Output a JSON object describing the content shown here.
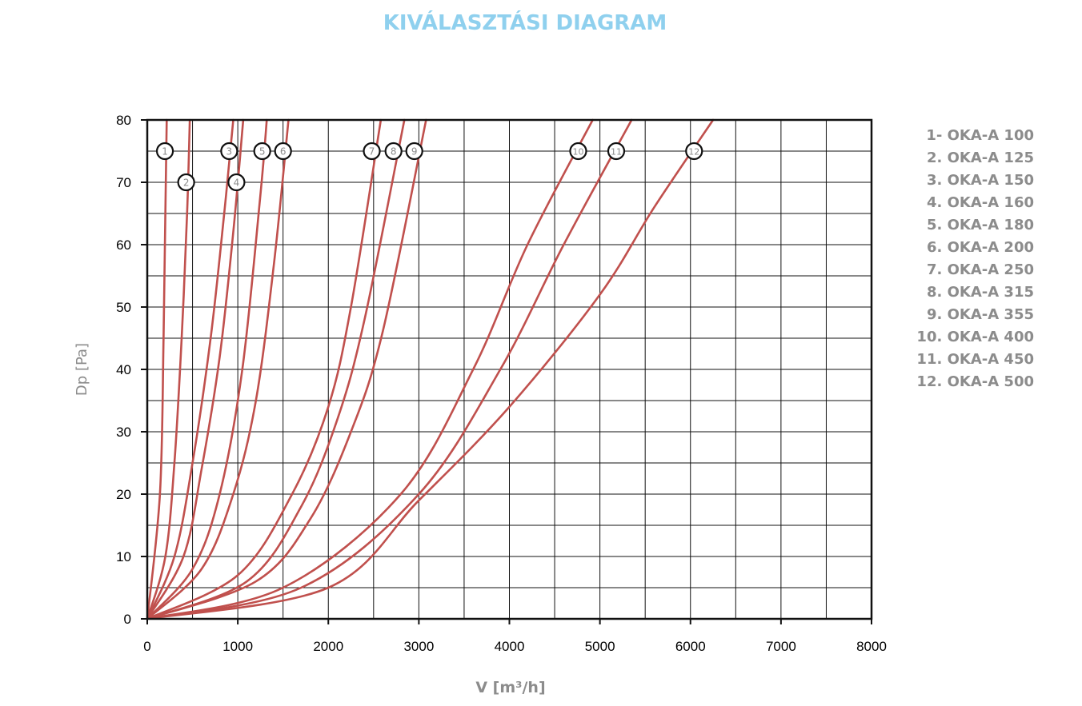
{
  "chart_data": {
    "type": "line",
    "title": "KIVÁLASZTÁSI DIAGRAM",
    "xlabel": "V [m³/h]",
    "ylabel": "Dp [Pa]",
    "xlim": [
      0,
      8000
    ],
    "ylim": [
      0,
      80
    ],
    "xticks": [
      0,
      1000,
      2000,
      3000,
      4000,
      5000,
      6000,
      7000,
      8000
    ],
    "yticks": [
      0,
      10,
      20,
      30,
      40,
      50,
      60,
      70,
      80
    ],
    "grid": true,
    "legend_position": "right",
    "line_color": "#c0504d",
    "legend": [
      "1- OKA-A 100",
      "2. OKA-A 125",
      "3. OKA-A 150",
      "4. OKA-A 160",
      "5. OKA-A 180",
      "6. OKA-A 200",
      "7. OKA-A 250",
      "8. OKA-A 315",
      "9. OKA-A 355",
      "10. OKA-A 400",
      "11. OKA-A 450",
      "12. OKA-A 500"
    ],
    "series": [
      {
        "label": "1",
        "label_point": [
          195,
          75
        ],
        "x": [
          0,
          140,
          180,
          200,
          215
        ],
        "y": [
          0,
          20,
          45,
          65,
          80
        ]
      },
      {
        "label": "2",
        "label_point": [
          430,
          70
        ],
        "x": [
          0,
          200,
          300,
          380,
          440,
          470
        ],
        "y": [
          0,
          10,
          25,
          45,
          65,
          80
        ]
      },
      {
        "label": "3",
        "label_point": [
          905,
          75
        ],
        "x": [
          0,
          300,
          500,
          700,
          850,
          950
        ],
        "y": [
          0,
          10,
          25,
          45,
          65,
          80
        ]
      },
      {
        "label": "4",
        "label_point": [
          985,
          70
        ],
        "x": [
          0,
          400,
          600,
          800,
          950,
          1060
        ],
        "y": [
          0,
          10,
          24,
          42,
          62,
          80
        ]
      },
      {
        "label": "5",
        "label_point": [
          1270,
          75
        ],
        "x": [
          0,
          500,
          800,
          1050,
          1250,
          1320
        ],
        "y": [
          0,
          8,
          20,
          40,
          68,
          80
        ]
      },
      {
        "label": "6",
        "label_point": [
          1500,
          75
        ],
        "x": [
          0,
          600,
          950,
          1200,
          1400,
          1560
        ],
        "y": [
          0,
          8,
          20,
          35,
          57,
          80
        ]
      },
      {
        "label": "7",
        "label_point": [
          2480,
          75
        ],
        "x": [
          0,
          1000,
          1600,
          2000,
          2250,
          2580
        ],
        "y": [
          0,
          7,
          20,
          34,
          50,
          80
        ]
      },
      {
        "label": "8",
        "label_point": [
          2720,
          75
        ],
        "x": [
          0,
          1100,
          1700,
          2100,
          2400,
          2840
        ],
        "y": [
          0,
          6,
          18,
          32,
          48,
          80
        ]
      },
      {
        "label": "9",
        "label_point": [
          2950,
          75
        ],
        "x": [
          0,
          1200,
          1800,
          2250,
          2600,
          3080
        ],
        "y": [
          0,
          6,
          16,
          30,
          46,
          80
        ]
      },
      {
        "label": "10",
        "label_point": [
          4760,
          75
        ],
        "x": [
          0,
          1500,
          2800,
          3600,
          4200,
          4920
        ],
        "y": [
          0,
          5,
          20,
          40,
          60,
          80
        ]
      },
      {
        "label": "11",
        "label_point": [
          5180,
          75
        ],
        "x": [
          0,
          1700,
          3000,
          3900,
          4600,
          5350
        ],
        "y": [
          0,
          5,
          20,
          40,
          60,
          80
        ]
      },
      {
        "label": "12",
        "label_point": [
          6040,
          75
        ],
        "x": [
          0,
          2000,
          3000,
          4000,
          5000,
          5600,
          6250
        ],
        "y": [
          0,
          5,
          19,
          34,
          52,
          66,
          80
        ]
      }
    ]
  }
}
